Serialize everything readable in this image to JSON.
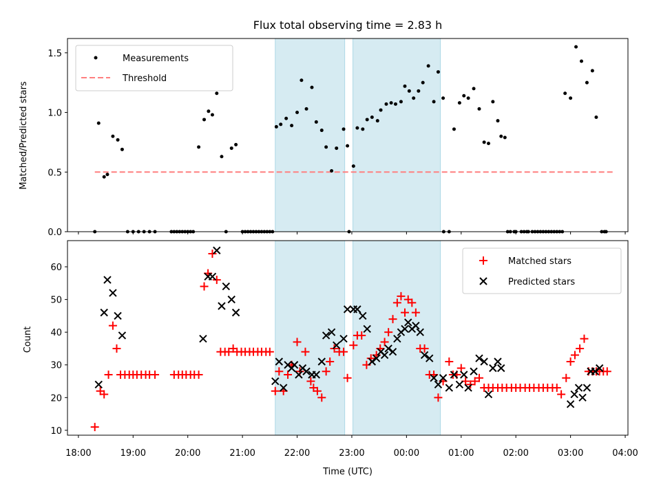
{
  "chart_data": [
    {
      "type": "scatter",
      "title": "Flux total observing time = 2.83 h",
      "xlabel": "",
      "ylabel": "Matched/Predicted stars",
      "xlim": [
        17.8,
        28.05
      ],
      "ylim": [
        0,
        1.62
      ],
      "yticks": [
        0,
        0.5,
        1.0,
        1.5
      ],
      "ytick_labels": [
        "0.0",
        "0.5",
        "1.0",
        "1.5"
      ],
      "shaded_intervals": [
        [
          21.6,
          22.87
        ],
        [
          23.02,
          24.62
        ]
      ],
      "legend_position": "upper-left",
      "legend": [
        {
          "label": "Measurements",
          "marker": "dot",
          "color": "#000000"
        },
        {
          "label": "Threshold",
          "marker": "dashed-line",
          "color": "#ff7f7f"
        }
      ],
      "threshold": {
        "y": 0.5,
        "x": [
          18.3,
          27.8
        ]
      },
      "series": [
        {
          "name": "Measurements",
          "color": "#000000",
          "x": [
            18.3,
            18.37,
            18.47,
            18.53,
            18.63,
            18.72,
            18.8,
            18.9,
            19.0,
            19.1,
            19.2,
            19.3,
            19.4,
            19.7,
            19.8,
            19.9,
            20.0,
            20.1,
            20.2,
            20.3,
            20.38,
            20.45,
            20.53,
            20.62,
            20.7,
            20.8,
            20.88,
            21.0,
            21.1,
            21.2,
            21.3,
            21.4,
            21.5,
            21.62,
            21.7,
            21.8,
            21.9,
            22.0,
            22.08,
            22.17,
            22.27,
            22.35,
            22.45,
            22.53,
            22.63,
            22.72,
            22.85,
            22.92,
            23.03,
            23.1,
            23.2,
            23.28,
            23.37,
            23.47,
            23.53,
            23.63,
            23.72,
            23.8,
            23.9,
            23.97,
            24.05,
            24.13,
            24.22,
            24.3,
            24.4,
            24.5,
            24.58,
            24.67,
            24.78,
            24.87,
            24.97,
            25.05,
            25.13,
            25.23,
            25.33,
            25.42,
            25.5,
            25.58,
            25.67,
            25.73,
            25.8,
            25.9,
            26.0,
            26.1,
            26.23,
            26.3,
            26.4,
            26.5,
            26.6,
            26.7,
            26.8,
            26.9,
            27.0,
            27.1,
            27.2,
            27.3,
            27.4,
            27.47,
            27.57,
            27.65
          ],
          "y": [
            0.0,
            0.91,
            0.46,
            0.48,
            0.8,
            0.77,
            0.69,
            0.0,
            0.0,
            0.0,
            0.0,
            0.0,
            0.0,
            0.0,
            0.0,
            0.0,
            0.0,
            0.0,
            0.71,
            0.94,
            1.01,
            0.98,
            1.16,
            0.63,
            0.0,
            0.7,
            0.73,
            0.0,
            0.0,
            0.0,
            0.0,
            0.0,
            0.0,
            0.88,
            0.9,
            0.95,
            0.89,
            1.0,
            1.27,
            1.03,
            1.21,
            0.92,
            0.85,
            0.71,
            0.51,
            0.7,
            0.86,
            0.72,
            0.55,
            0.87,
            0.86,
            0.94,
            0.96,
            0.93,
            1.02,
            1.07,
            1.08,
            1.07,
            1.09,
            1.22,
            1.18,
            1.12,
            1.18,
            1.25,
            1.39,
            1.09,
            1.34,
            1.12,
            0.0,
            0.86,
            1.08,
            1.14,
            1.12,
            1.2,
            1.03,
            0.75,
            0.74,
            1.09,
            0.93,
            0.8,
            0.79,
            0.0,
            0.0,
            0.0,
            0.0,
            0.0,
            0.0,
            0.0,
            0.0,
            0.0,
            0.0,
            1.16,
            1.12,
            1.55,
            1.43,
            1.25,
            1.35,
            0.96,
            0.0,
            0.0
          ],
          "zero_extra_x": [
            22.95,
            24.68,
            25.85,
            25.97,
            26.15,
            26.2,
            26.35,
            26.45,
            26.55,
            26.65,
            26.75,
            26.85,
            27.62,
            21.05,
            21.15,
            21.25,
            21.35,
            21.45,
            21.55,
            19.75,
            19.85,
            19.95,
            20.05
          ]
        }
      ]
    },
    {
      "type": "scatter",
      "xlabel": "Time (UTC)",
      "ylabel": "Count",
      "xlim": [
        17.8,
        28.05
      ],
      "ylim": [
        8.5,
        68
      ],
      "yticks": [
        10,
        20,
        30,
        40,
        50,
        60
      ],
      "ytick_labels": [
        "10",
        "20",
        "30",
        "40",
        "50",
        "60"
      ],
      "xticks": [
        18,
        19,
        20,
        21,
        22,
        23,
        24,
        25,
        26,
        27,
        28
      ],
      "xtick_labels": [
        "18:00",
        "19:00",
        "20:00",
        "21:00",
        "22:00",
        "23:00",
        "00:00",
        "01:00",
        "02:00",
        "03:00",
        "04:00"
      ],
      "shaded_intervals": [
        [
          21.6,
          22.87
        ],
        [
          23.02,
          24.62
        ]
      ],
      "legend_position": "upper-right",
      "legend": [
        {
          "label": "Matched stars",
          "marker": "plus",
          "color": "#ff0000"
        },
        {
          "label": "Predicted stars",
          "marker": "x",
          "color": "#000000"
        }
      ],
      "series": [
        {
          "name": "Matched stars",
          "color": "#ff0000",
          "x": [
            18.3,
            18.4,
            18.47,
            18.55,
            18.63,
            18.7,
            18.77,
            18.85,
            18.93,
            19.0,
            19.07,
            19.15,
            19.23,
            19.3,
            19.4,
            19.75,
            19.83,
            19.9,
            19.97,
            20.05,
            20.12,
            20.2,
            20.3,
            20.37,
            20.45,
            20.53,
            20.6,
            20.68,
            20.75,
            20.83,
            20.9,
            20.98,
            21.05,
            21.13,
            21.2,
            21.28,
            21.35,
            21.43,
            21.5,
            21.6,
            21.67,
            21.75,
            21.83,
            21.9,
            22.0,
            22.05,
            22.15,
            22.25,
            22.3,
            22.37,
            22.45,
            22.53,
            22.6,
            22.68,
            22.77,
            22.85,
            22.92,
            23.03,
            23.1,
            23.18,
            23.27,
            23.35,
            23.45,
            23.52,
            23.6,
            23.67,
            23.75,
            23.83,
            23.9,
            23.97,
            24.03,
            24.1,
            24.17,
            24.25,
            24.33,
            24.42,
            24.5,
            24.58,
            24.67,
            24.78,
            24.85,
            24.92,
            25.0,
            25.08,
            25.17,
            25.25,
            25.33,
            25.42,
            25.5,
            25.58,
            25.67,
            25.75,
            25.83,
            25.92,
            26.0,
            26.08,
            26.17,
            26.25,
            26.33,
            26.42,
            26.5,
            26.58,
            26.67,
            26.75,
            26.83,
            26.92,
            27.0,
            27.08,
            27.17,
            27.25,
            27.33,
            27.4,
            27.47,
            27.53,
            27.6,
            27.67
          ],
          "y": [
            11,
            22,
            21,
            27,
            42,
            35,
            27,
            27,
            27,
            27,
            27,
            27,
            27,
            27,
            27,
            27,
            27,
            27,
            27,
            27,
            27,
            27,
            54,
            58,
            64,
            56,
            34,
            34,
            34,
            35,
            34,
            34,
            34,
            34,
            34,
            34,
            34,
            34,
            34,
            22,
            28,
            22,
            27,
            30,
            37,
            28,
            34,
            25,
            23,
            22,
            20,
            28,
            31,
            35,
            34,
            34,
            26,
            36,
            39,
            39,
            30,
            32,
            33,
            35,
            37,
            40,
            44,
            49,
            51,
            46,
            50,
            49,
            46,
            35,
            35,
            27,
            27,
            20,
            25,
            31,
            27,
            27,
            29,
            25,
            24,
            25,
            26,
            23,
            23,
            23,
            23,
            23,
            23,
            23,
            23,
            23,
            23,
            23,
            23,
            23,
            23,
            23,
            23,
            23,
            21,
            26,
            31,
            33,
            35,
            38,
            28,
            28,
            28,
            28,
            28,
            28
          ]
        },
        {
          "name": "Predicted stars",
          "color": "#000000",
          "x": [
            18.37,
            18.47,
            18.53,
            18.63,
            18.72,
            18.8,
            20.28,
            20.37,
            20.45,
            20.53,
            20.62,
            20.7,
            20.8,
            20.88,
            21.6,
            21.67,
            21.75,
            21.83,
            21.9,
            21.95,
            22.03,
            22.1,
            22.17,
            22.27,
            22.35,
            22.45,
            22.53,
            22.63,
            22.72,
            22.85,
            22.92,
            23.03,
            23.1,
            23.2,
            23.28,
            23.37,
            23.45,
            23.53,
            23.6,
            23.67,
            23.75,
            23.83,
            23.9,
            23.97,
            24.03,
            24.1,
            24.17,
            24.25,
            24.33,
            24.42,
            24.5,
            24.58,
            24.67,
            24.78,
            24.87,
            24.97,
            25.05,
            25.13,
            25.23,
            25.33,
            25.42,
            25.5,
            25.58,
            25.67,
            25.73,
            27.0,
            27.07,
            27.15,
            27.22,
            27.3,
            27.37,
            27.45,
            27.53
          ],
          "y": [
            24,
            46,
            56,
            52,
            45,
            39,
            38,
            57,
            57,
            65,
            48,
            54,
            50,
            46,
            25,
            31,
            23,
            30,
            29,
            30,
            27,
            29,
            28,
            27,
            27,
            31,
            39,
            40,
            36,
            38,
            47,
            47,
            47,
            45,
            41,
            31,
            32,
            34,
            33,
            35,
            34,
            38,
            40,
            41,
            43,
            41,
            42,
            40,
            33,
            32,
            26,
            24,
            26,
            23,
            27,
            24,
            27,
            23,
            28,
            32,
            31,
            21,
            29,
            31,
            29,
            18,
            21,
            23,
            20,
            23,
            28,
            28,
            29
          ]
        }
      ]
    }
  ]
}
